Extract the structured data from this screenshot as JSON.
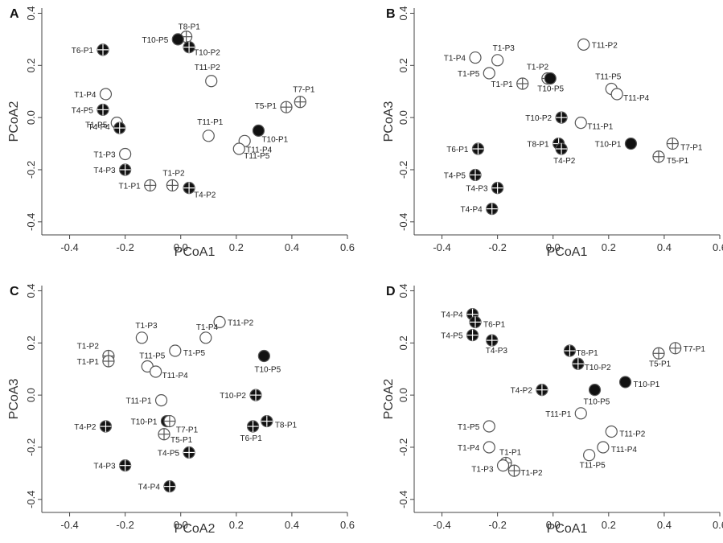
{
  "figure": {
    "panels": [
      {
        "letter": "A",
        "xlabel": "PCoA1",
        "ylabel": "PCoA2"
      },
      {
        "letter": "B",
        "xlabel": "PCoA1",
        "ylabel": "PCoA3"
      },
      {
        "letter": "C",
        "xlabel": "PCoA2",
        "ylabel": "PCoA3"
      },
      {
        "letter": "D",
        "xlabel": "PCoA1",
        "ylabel": "PCoA2"
      }
    ]
  },
  "chart_data": [
    {
      "type": "scatter",
      "panel": "A",
      "xlabel": "PCoA1",
      "ylabel": "PCoA2",
      "xlim": [
        -0.5,
        0.6
      ],
      "ylim": [
        -0.45,
        0.42
      ],
      "xticks": [
        -0.4,
        -0.2,
        0.0,
        0.2,
        0.4,
        0.6
      ],
      "xtick_labels": [
        "-0.4",
        "-0.2",
        "0.0",
        "0.2",
        "0.4",
        "0.6"
      ],
      "yticks": [
        -0.4,
        -0.2,
        0.0,
        0.2,
        0.4
      ],
      "ytick_labels": [
        "-0.4",
        "-0.2",
        "0.0",
        "0.2",
        "0.4"
      ],
      "points": [
        {
          "label": "T8-P1",
          "x": 0.02,
          "y": 0.31,
          "style": "cross-open"
        },
        {
          "label": "T10-P5",
          "x": -0.01,
          "y": 0.3,
          "style": "filled"
        },
        {
          "label": "T10-P2",
          "x": 0.03,
          "y": 0.27,
          "style": "cross-filled"
        },
        {
          "label": "T6-P1",
          "x": -0.28,
          "y": 0.26,
          "style": "cross-filled"
        },
        {
          "label": "T11-P2",
          "x": 0.11,
          "y": 0.14,
          "style": "open"
        },
        {
          "label": "T1-P4",
          "x": -0.27,
          "y": 0.09,
          "style": "open"
        },
        {
          "label": "T7-P1",
          "x": 0.43,
          "y": 0.06,
          "style": "cross-open"
        },
        {
          "label": "T5-P1",
          "x": 0.38,
          "y": 0.04,
          "style": "cross-open"
        },
        {
          "label": "T4-P5",
          "x": -0.28,
          "y": 0.03,
          "style": "cross-filled"
        },
        {
          "label": "T1-P5",
          "x": -0.23,
          "y": -0.02,
          "style": "open"
        },
        {
          "label": "T4-P4",
          "x": -0.22,
          "y": -0.04,
          "style": "cross-filled"
        },
        {
          "label": "T10-P1",
          "x": 0.28,
          "y": -0.05,
          "style": "filled"
        },
        {
          "label": "T11-P1",
          "x": 0.1,
          "y": -0.07,
          "style": "open"
        },
        {
          "label": "T11-P4",
          "x": 0.23,
          "y": -0.09,
          "style": "open"
        },
        {
          "label": "T11-P5",
          "x": 0.21,
          "y": -0.12,
          "style": "open"
        },
        {
          "label": "T1-P3",
          "x": -0.2,
          "y": -0.14,
          "style": "open"
        },
        {
          "label": "T4-P3",
          "x": -0.2,
          "y": -0.2,
          "style": "cross-filled"
        },
        {
          "label": "T1-P2",
          "x": -0.03,
          "y": -0.26,
          "style": "cross-open"
        },
        {
          "label": "T1-P1",
          "x": -0.11,
          "y": -0.26,
          "style": "cross-open"
        },
        {
          "label": "T4-P2",
          "x": 0.03,
          "y": -0.27,
          "style": "cross-filled"
        }
      ]
    },
    {
      "type": "scatter",
      "panel": "B",
      "xlabel": "PCoA1",
      "ylabel": "PCoA3",
      "xlim": [
        -0.5,
        0.6
      ],
      "ylim": [
        -0.45,
        0.42
      ],
      "xticks": [
        -0.4,
        -0.2,
        0.0,
        0.2,
        0.4,
        0.6
      ],
      "xtick_labels": [
        "-0.4",
        "-0.2",
        "0.0",
        "0.2",
        "0.4",
        "0.6"
      ],
      "yticks": [
        -0.4,
        -0.2,
        0.0,
        0.2,
        0.4
      ],
      "ytick_labels": [
        "-0.4",
        "-0.2",
        "0.0",
        "0.2",
        "0.4"
      ],
      "points": [
        {
          "label": "T11-P2",
          "x": 0.11,
          "y": 0.28,
          "style": "open"
        },
        {
          "label": "T1-P4",
          "x": -0.28,
          "y": 0.23,
          "style": "open"
        },
        {
          "label": "T1-P3",
          "x": -0.2,
          "y": 0.22,
          "style": "open"
        },
        {
          "label": "T1-P5",
          "x": -0.23,
          "y": 0.17,
          "style": "open"
        },
        {
          "label": "T1-P2",
          "x": -0.02,
          "y": 0.15,
          "style": "cross-open"
        },
        {
          "label": "T10-P5",
          "x": -0.01,
          "y": 0.15,
          "style": "filled"
        },
        {
          "label": "T1-P1",
          "x": -0.11,
          "y": 0.13,
          "style": "cross-open"
        },
        {
          "label": "T11-P5",
          "x": 0.21,
          "y": 0.11,
          "style": "open"
        },
        {
          "label": "T11-P4",
          "x": 0.23,
          "y": 0.09,
          "style": "open"
        },
        {
          "label": "T10-P2",
          "x": 0.03,
          "y": 0.0,
          "style": "cross-filled"
        },
        {
          "label": "T11-P1",
          "x": 0.1,
          "y": -0.02,
          "style": "open"
        },
        {
          "label": "T6-P1",
          "x": -0.27,
          "y": -0.12,
          "style": "cross-filled"
        },
        {
          "label": "T8-P1",
          "x": 0.02,
          "y": -0.1,
          "style": "cross-filled"
        },
        {
          "label": "T4-P2",
          "x": 0.03,
          "y": -0.12,
          "style": "cross-filled"
        },
        {
          "label": "T10-P1",
          "x": 0.28,
          "y": -0.1,
          "style": "filled"
        },
        {
          "label": "T7-P1",
          "x": 0.43,
          "y": -0.1,
          "style": "cross-open"
        },
        {
          "label": "T5-P1",
          "x": 0.38,
          "y": -0.15,
          "style": "cross-open"
        },
        {
          "label": "T4-P5",
          "x": -0.28,
          "y": -0.22,
          "style": "cross-filled"
        },
        {
          "label": "T4-P3",
          "x": -0.2,
          "y": -0.27,
          "style": "cross-filled"
        },
        {
          "label": "T4-P4",
          "x": -0.22,
          "y": -0.35,
          "style": "cross-filled"
        }
      ]
    },
    {
      "type": "scatter",
      "panel": "C",
      "xlabel": "PCoA2",
      "ylabel": "PCoA3",
      "xlim": [
        -0.5,
        0.6
      ],
      "ylim": [
        -0.45,
        0.42
      ],
      "xticks": [
        -0.4,
        -0.2,
        0.0,
        0.2,
        0.4,
        0.6
      ],
      "xtick_labels": [
        "-0.4",
        "-0.2",
        "0.0",
        "0.2",
        "0.4",
        "0.6"
      ],
      "yticks": [
        -0.4,
        -0.2,
        0.0,
        0.2,
        0.4
      ],
      "ytick_labels": [
        "-0.4",
        "-0.2",
        "0.0",
        "0.2",
        "0.4"
      ],
      "points": [
        {
          "label": "T11-P2",
          "x": 0.14,
          "y": 0.28,
          "style": "open"
        },
        {
          "label": "T1-P3",
          "x": -0.14,
          "y": 0.22,
          "style": "open"
        },
        {
          "label": "T1-P4",
          "x": 0.09,
          "y": 0.22,
          "style": "open"
        },
        {
          "label": "T1-P5",
          "x": -0.02,
          "y": 0.17,
          "style": "open"
        },
        {
          "label": "T1-P2",
          "x": -0.26,
          "y": 0.15,
          "style": "cross-open"
        },
        {
          "label": "T1-P1",
          "x": -0.26,
          "y": 0.13,
          "style": "cross-open"
        },
        {
          "label": "T10-P5",
          "x": 0.3,
          "y": 0.15,
          "style": "filled"
        },
        {
          "label": "T11-P5",
          "x": -0.12,
          "y": 0.11,
          "style": "open"
        },
        {
          "label": "T11-P4",
          "x": -0.09,
          "y": 0.09,
          "style": "open"
        },
        {
          "label": "T10-P2",
          "x": 0.27,
          "y": 0.0,
          "style": "cross-filled"
        },
        {
          "label": "T11-P1",
          "x": -0.07,
          "y": -0.02,
          "style": "open"
        },
        {
          "label": "T10-P1",
          "x": -0.05,
          "y": -0.1,
          "style": "filled"
        },
        {
          "label": "T7-P1",
          "x": -0.04,
          "y": -0.1,
          "style": "cross-open"
        },
        {
          "label": "T5-P1",
          "x": -0.06,
          "y": -0.15,
          "style": "cross-open"
        },
        {
          "label": "T4-P2",
          "x": -0.27,
          "y": -0.12,
          "style": "cross-filled"
        },
        {
          "label": "T6-P1",
          "x": 0.26,
          "y": -0.12,
          "style": "cross-filled"
        },
        {
          "label": "T8-P1",
          "x": 0.31,
          "y": -0.1,
          "style": "cross-filled"
        },
        {
          "label": "T4-P5",
          "x": 0.03,
          "y": -0.22,
          "style": "cross-filled"
        },
        {
          "label": "T4-P3",
          "x": -0.2,
          "y": -0.27,
          "style": "cross-filled"
        },
        {
          "label": "T4-P4",
          "x": -0.04,
          "y": -0.35,
          "style": "cross-filled"
        }
      ]
    },
    {
      "type": "scatter",
      "panel": "D",
      "xlabel": "PCoA1",
      "ylabel": "PCoA2",
      "xlim": [
        -0.5,
        0.6
      ],
      "ylim": [
        -0.45,
        0.42
      ],
      "xticks": [
        -0.4,
        -0.2,
        0.0,
        0.2,
        0.4,
        0.6
      ],
      "xtick_labels": [
        "-0.4",
        "-0.2",
        "0.0",
        "0.2",
        "0.4",
        "0.6"
      ],
      "yticks": [
        -0.4,
        -0.2,
        0.0,
        0.2,
        0.4
      ],
      "ytick_labels": [
        "-0.4",
        "-0.2",
        "0.0",
        "0.2",
        "0.4"
      ],
      "points": [
        {
          "label": "T4-P4",
          "x": -0.29,
          "y": 0.31,
          "style": "cross-filled"
        },
        {
          "label": "T6-P1",
          "x": -0.28,
          "y": 0.28,
          "style": "cross-filled"
        },
        {
          "label": "T4-P5",
          "x": -0.29,
          "y": 0.23,
          "style": "cross-filled"
        },
        {
          "label": "T4-P3",
          "x": -0.22,
          "y": 0.21,
          "style": "cross-filled"
        },
        {
          "label": "T8-P1",
          "x": 0.06,
          "y": 0.17,
          "style": "cross-filled"
        },
        {
          "label": "T7-P1",
          "x": 0.44,
          "y": 0.18,
          "style": "cross-open"
        },
        {
          "label": "T5-P1",
          "x": 0.38,
          "y": 0.16,
          "style": "cross-open"
        },
        {
          "label": "T10-P2",
          "x": 0.09,
          "y": 0.12,
          "style": "cross-filled"
        },
        {
          "label": "T10-P1",
          "x": 0.26,
          "y": 0.05,
          "style": "filled"
        },
        {
          "label": "T4-P2",
          "x": -0.04,
          "y": 0.02,
          "style": "cross-filled"
        },
        {
          "label": "T10-P5",
          "x": 0.15,
          "y": 0.02,
          "style": "filled"
        },
        {
          "label": "T11-P1",
          "x": 0.1,
          "y": -0.07,
          "style": "open"
        },
        {
          "label": "T1-P5",
          "x": -0.23,
          "y": -0.12,
          "style": "open"
        },
        {
          "label": "T11-P2",
          "x": 0.21,
          "y": -0.14,
          "style": "open"
        },
        {
          "label": "T1-P4",
          "x": -0.23,
          "y": -0.2,
          "style": "open"
        },
        {
          "label": "T11-P4",
          "x": 0.18,
          "y": -0.2,
          "style": "open"
        },
        {
          "label": "T11-P5",
          "x": 0.13,
          "y": -0.23,
          "style": "open"
        },
        {
          "label": "T1-P1",
          "x": -0.17,
          "y": -0.26,
          "style": "cross-open"
        },
        {
          "label": "T1-P3",
          "x": -0.18,
          "y": -0.27,
          "style": "open"
        },
        {
          "label": "T1-P2",
          "x": -0.14,
          "y": -0.29,
          "style": "cross-open"
        }
      ]
    }
  ]
}
